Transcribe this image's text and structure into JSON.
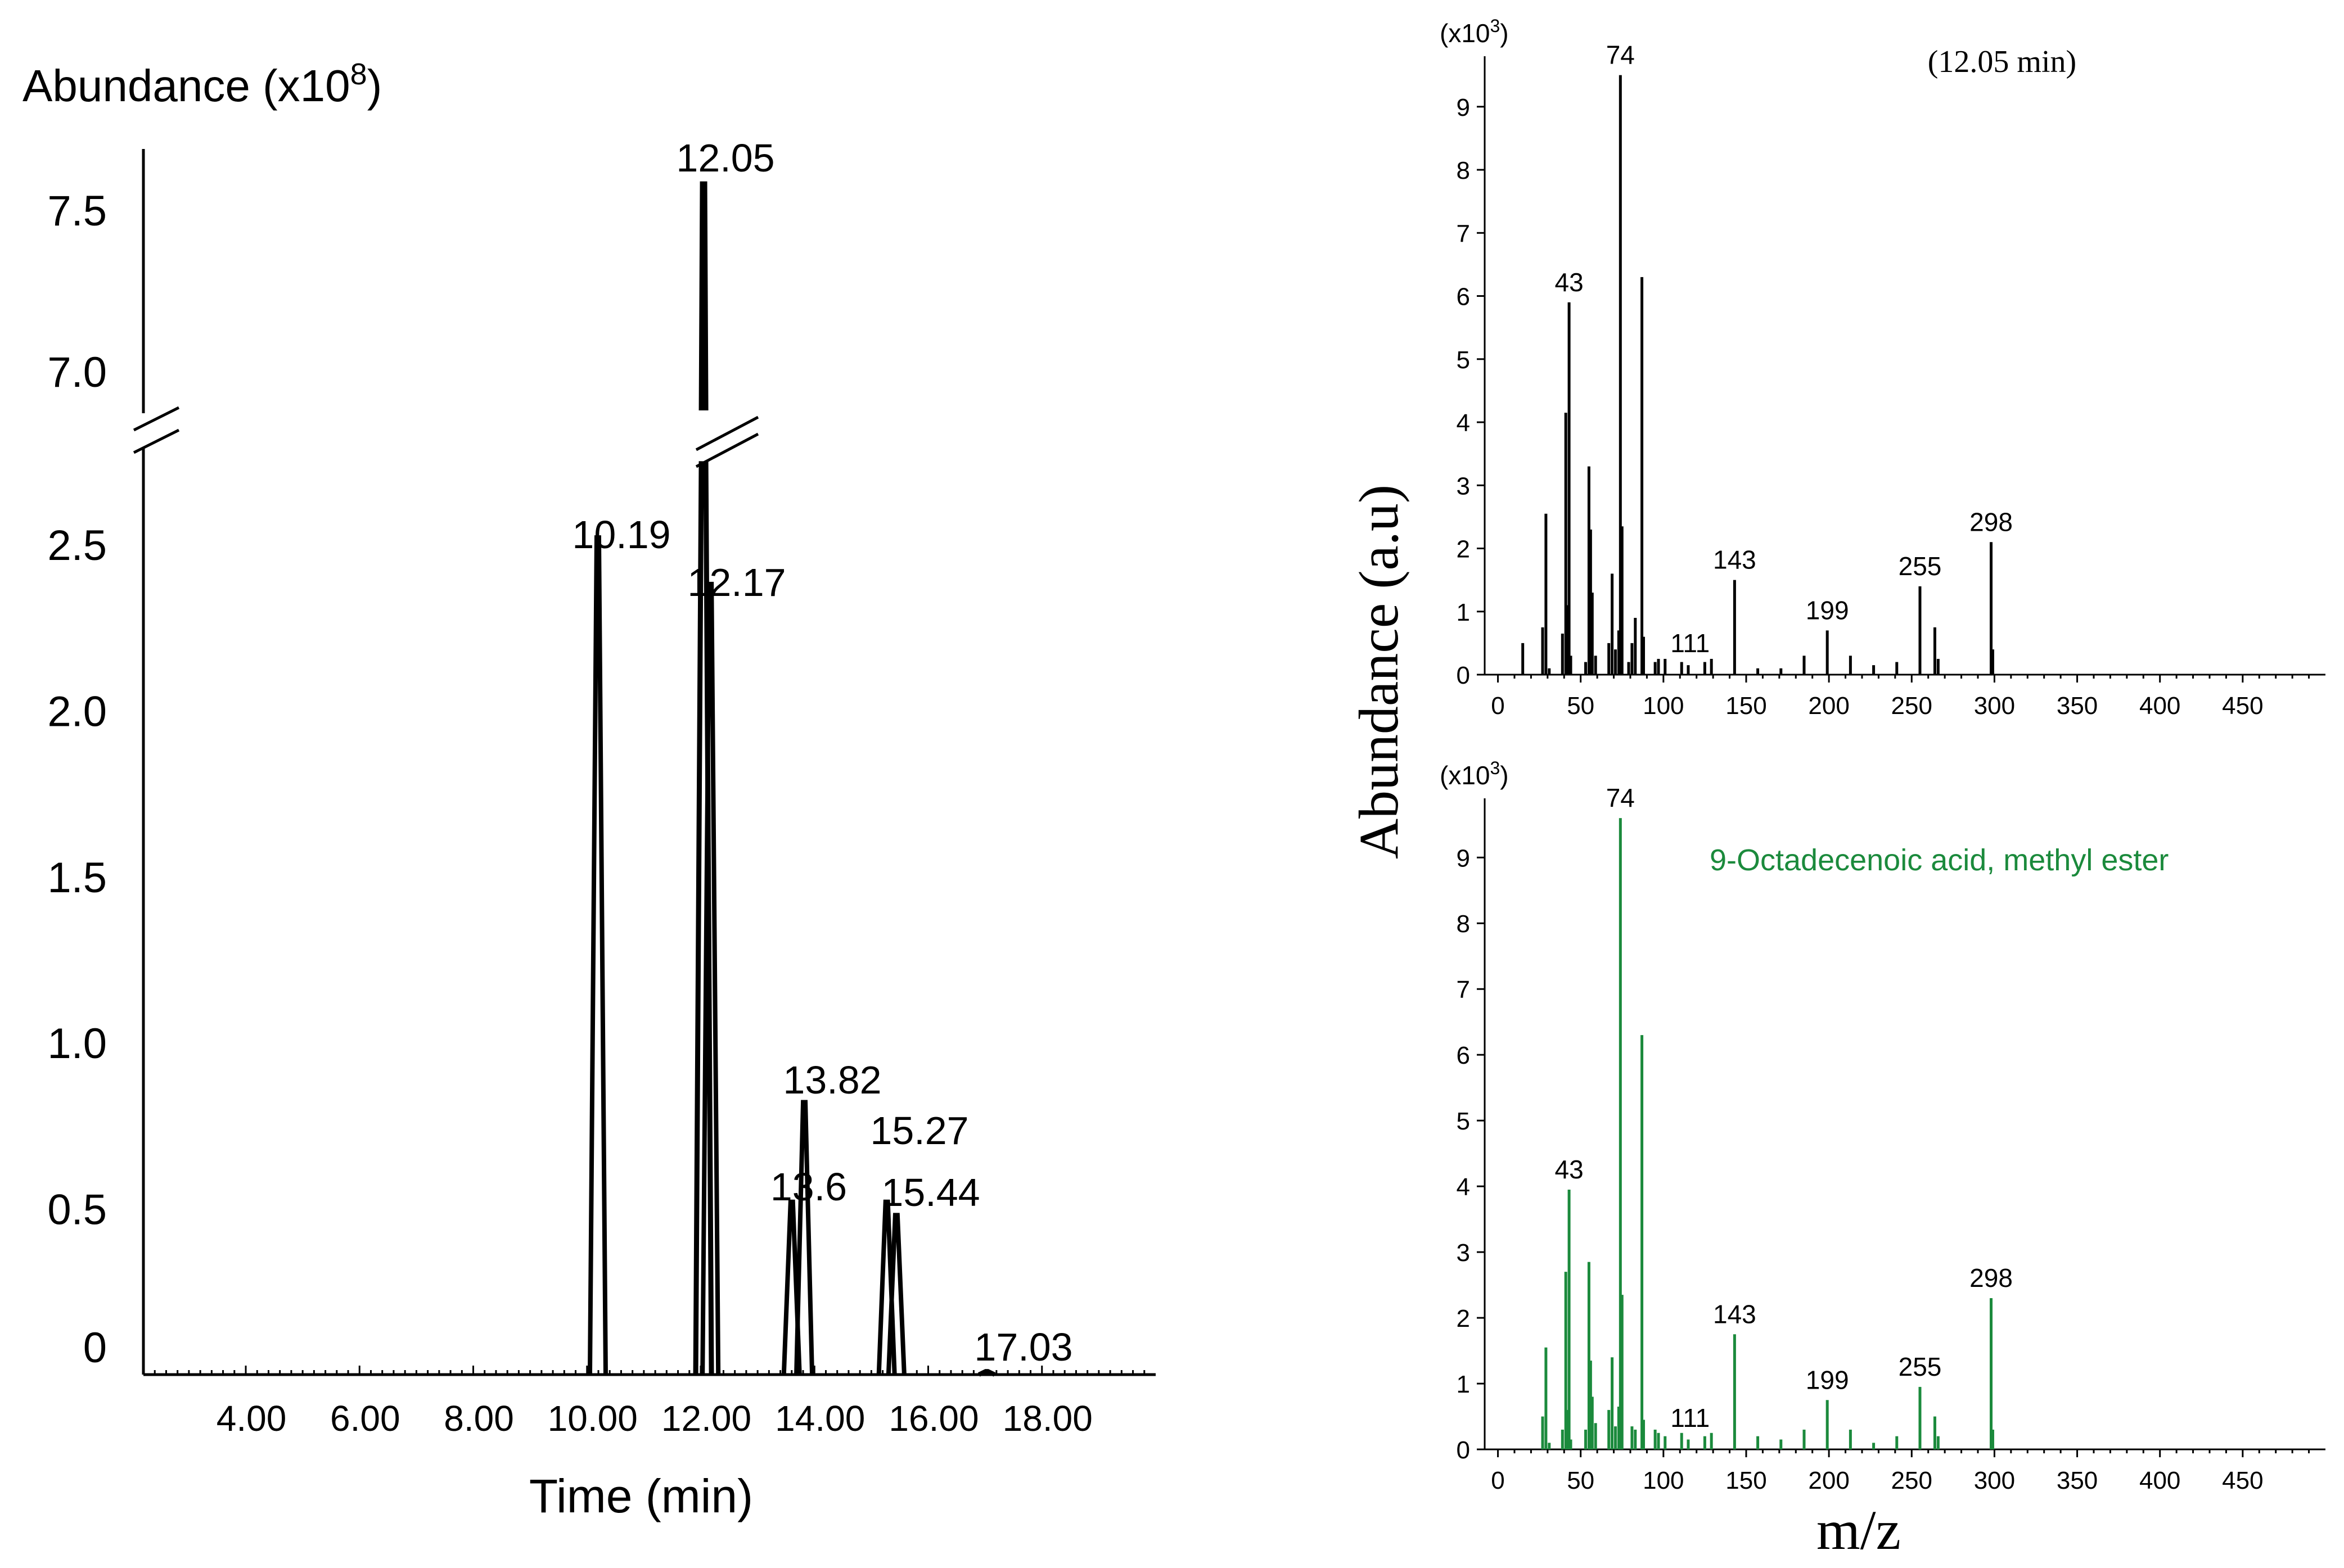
{
  "chart_data": [
    {
      "type": "line",
      "subtype": "chromatogram",
      "ylabel": "Abundance (x10",
      "ylabel_exp": "8",
      "ylabel_suffix": ")",
      "xlabel": "Time (min)",
      "xlim": [
        2.2,
        20.0
      ],
      "y_ticks": [
        "0",
        "0.5",
        "1.0",
        "1.5",
        "2.0",
        "2.5",
        "7.0",
        "7.5"
      ],
      "y_tick_values": [
        0,
        0.5,
        1.0,
        1.5,
        2.0,
        2.5,
        7.0,
        7.5
      ],
      "x_ticks": [
        4,
        6,
        8,
        10,
        12,
        14,
        16,
        18
      ],
      "x_tick_labels": [
        "4.00",
        "6.00",
        "8.00",
        "10.00",
        "12.00",
        "14.00",
        "16.00",
        "18.00"
      ],
      "axis_break": {
        "from": 2.75,
        "to": 6.75
      },
      "peaks": [
        {
          "rt": 10.19,
          "label": "10.19",
          "height": 2.52
        },
        {
          "rt": 12.05,
          "label": "12.05",
          "height": 7.58
        },
        {
          "rt": 12.17,
          "label": "12.17",
          "height": 2.38
        },
        {
          "rt": 13.6,
          "label": "13.6",
          "height": 0.52
        },
        {
          "rt": 13.82,
          "label": "13.82",
          "height": 0.82
        },
        {
          "rt": 15.27,
          "label": "15.27",
          "height": 0.52
        },
        {
          "rt": 15.44,
          "label": "15.44",
          "height": 0.48
        },
        {
          "rt": 17.03,
          "label": "17.03",
          "height": 0.01
        }
      ]
    },
    {
      "type": "bar",
      "subtype": "mass-spectrum",
      "title": "(12.05 min)",
      "yunit": "(x10",
      "yunit_exp": "3",
      "yunit_suffix": ")",
      "color": "#000000",
      "xlim": [
        -8,
        500
      ],
      "ylim": [
        0,
        9.8
      ],
      "x_ticks": [
        0,
        50,
        100,
        150,
        200,
        250,
        300,
        350,
        400,
        450
      ],
      "y_ticks": [
        0,
        1,
        2,
        3,
        4,
        5,
        6,
        7,
        8,
        9
      ],
      "peaks": [
        {
          "mz": 15,
          "v": 0.5
        },
        {
          "mz": 27,
          "v": 0.75
        },
        {
          "mz": 29,
          "v": 2.55
        },
        {
          "mz": 31,
          "v": 0.1
        },
        {
          "mz": 39,
          "v": 0.65
        },
        {
          "mz": 41,
          "v": 4.15
        },
        {
          "mz": 42,
          "v": 1.1
        },
        {
          "mz": 43,
          "v": 5.9,
          "label": "43"
        },
        {
          "mz": 44,
          "v": 0.3
        },
        {
          "mz": 53,
          "v": 0.2
        },
        {
          "mz": 55,
          "v": 3.3
        },
        {
          "mz": 56,
          "v": 2.3
        },
        {
          "mz": 57,
          "v": 1.3
        },
        {
          "mz": 59,
          "v": 0.3
        },
        {
          "mz": 67,
          "v": 0.5
        },
        {
          "mz": 69,
          "v": 1.6
        },
        {
          "mz": 71,
          "v": 0.4
        },
        {
          "mz": 73,
          "v": 0.7
        },
        {
          "mz": 74,
          "v": 9.5,
          "label": "74"
        },
        {
          "mz": 75,
          "v": 2.35
        },
        {
          "mz": 79,
          "v": 0.2
        },
        {
          "mz": 81,
          "v": 0.5
        },
        {
          "mz": 83,
          "v": 0.9
        },
        {
          "mz": 87,
          "v": 6.3
        },
        {
          "mz": 88,
          "v": 0.6
        },
        {
          "mz": 95,
          "v": 0.2
        },
        {
          "mz": 97,
          "v": 0.25
        },
        {
          "mz": 101,
          "v": 0.25
        },
        {
          "mz": 111,
          "v": 0.2,
          "label": "111"
        },
        {
          "mz": 115,
          "v": 0.15
        },
        {
          "mz": 125,
          "v": 0.2
        },
        {
          "mz": 129,
          "v": 0.25
        },
        {
          "mz": 143,
          "v": 1.5,
          "label": "143"
        },
        {
          "mz": 157,
          "v": 0.1
        },
        {
          "mz": 171,
          "v": 0.1
        },
        {
          "mz": 185,
          "v": 0.3
        },
        {
          "mz": 199,
          "v": 0.7,
          "label": "199"
        },
        {
          "mz": 213,
          "v": 0.3
        },
        {
          "mz": 227,
          "v": 0.15
        },
        {
          "mz": 241,
          "v": 0.2
        },
        {
          "mz": 255,
          "v": 1.4,
          "label": "255"
        },
        {
          "mz": 264,
          "v": 0.75
        },
        {
          "mz": 266,
          "v": 0.25
        },
        {
          "mz": 298,
          "v": 2.1,
          "label": "298"
        },
        {
          "mz": 299,
          "v": 0.4
        }
      ]
    },
    {
      "type": "bar",
      "subtype": "mass-spectrum",
      "title": "9-Octadecenoic acid, methyl ester",
      "yunit": "(x10",
      "yunit_exp": "3",
      "yunit_suffix": ")",
      "color": "#1b8a3c",
      "xlim": [
        -8,
        500
      ],
      "ylim": [
        0,
        9.9
      ],
      "x_ticks": [
        0,
        50,
        100,
        150,
        200,
        250,
        300,
        350,
        400,
        450
      ],
      "y_ticks": [
        0,
        1,
        2,
        3,
        4,
        5,
        6,
        7,
        8,
        9
      ],
      "peaks": [
        {
          "mz": 27,
          "v": 0.5
        },
        {
          "mz": 29,
          "v": 1.55
        },
        {
          "mz": 31,
          "v": 0.1
        },
        {
          "mz": 39,
          "v": 0.3
        },
        {
          "mz": 41,
          "v": 2.7
        },
        {
          "mz": 42,
          "v": 0.6
        },
        {
          "mz": 43,
          "v": 3.95,
          "label": "43"
        },
        {
          "mz": 44,
          "v": 0.15
        },
        {
          "mz": 53,
          "v": 0.3
        },
        {
          "mz": 55,
          "v": 2.85
        },
        {
          "mz": 56,
          "v": 1.35
        },
        {
          "mz": 57,
          "v": 0.8
        },
        {
          "mz": 59,
          "v": 0.4
        },
        {
          "mz": 67,
          "v": 0.6
        },
        {
          "mz": 69,
          "v": 1.4
        },
        {
          "mz": 71,
          "v": 0.35
        },
        {
          "mz": 73,
          "v": 0.65
        },
        {
          "mz": 74,
          "v": 9.6,
          "label": "74"
        },
        {
          "mz": 75,
          "v": 2.35
        },
        {
          "mz": 81,
          "v": 0.35
        },
        {
          "mz": 83,
          "v": 0.3
        },
        {
          "mz": 87,
          "v": 6.3
        },
        {
          "mz": 88,
          "v": 0.45
        },
        {
          "mz": 95,
          "v": 0.3
        },
        {
          "mz": 97,
          "v": 0.25
        },
        {
          "mz": 101,
          "v": 0.2
        },
        {
          "mz": 111,
          "v": 0.25,
          "label": "111"
        },
        {
          "mz": 115,
          "v": 0.15
        },
        {
          "mz": 125,
          "v": 0.2
        },
        {
          "mz": 129,
          "v": 0.25
        },
        {
          "mz": 143,
          "v": 1.75,
          "label": "143"
        },
        {
          "mz": 157,
          "v": 0.2
        },
        {
          "mz": 171,
          "v": 0.15
        },
        {
          "mz": 185,
          "v": 0.3
        },
        {
          "mz": 199,
          "v": 0.75,
          "label": "199"
        },
        {
          "mz": 213,
          "v": 0.3
        },
        {
          "mz": 227,
          "v": 0.1
        },
        {
          "mz": 241,
          "v": 0.2
        },
        {
          "mz": 255,
          "v": 0.95,
          "label": "255"
        },
        {
          "mz": 264,
          "v": 0.5
        },
        {
          "mz": 266,
          "v": 0.2
        },
        {
          "mz": 298,
          "v": 2.3,
          "label": "298"
        },
        {
          "mz": 299,
          "v": 0.3
        }
      ]
    }
  ],
  "shared": {
    "ylabel": "Abundance (a.u)",
    "xlabel": "m/z"
  }
}
